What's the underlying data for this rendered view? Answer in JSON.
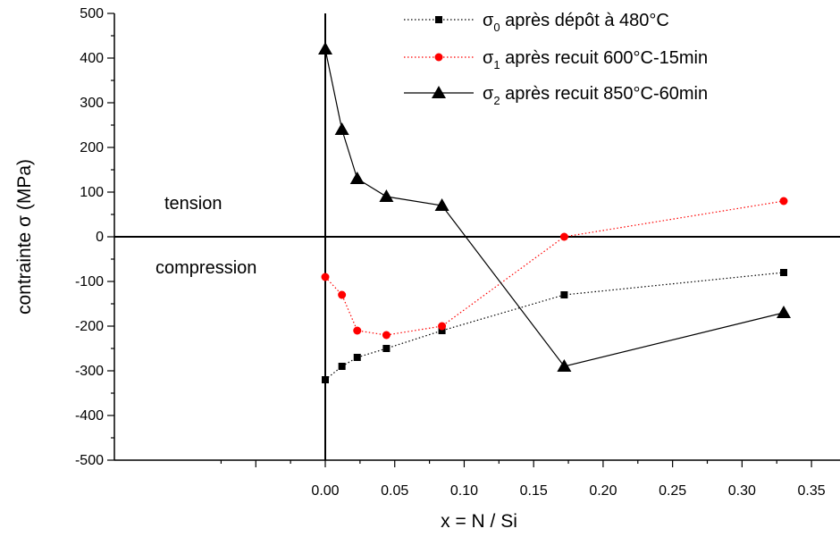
{
  "chart_data": {
    "type": "line",
    "xlabel": "x = N / Si",
    "ylabel": "contrainte σ (MPa)",
    "xlim": [
      -0.075,
      0.37
    ],
    "ylim": [
      -500,
      500
    ],
    "x_ticks": [
      "0.00",
      "0.05",
      "0.10",
      "0.15",
      "0.20",
      "0.25",
      "0.30",
      "0.35"
    ],
    "y_ticks": [
      "500",
      "400",
      "300",
      "200",
      "100",
      "0",
      "-100",
      "-200",
      "-300",
      "-400",
      "-500"
    ],
    "grid": false,
    "legend_position": "top-right",
    "annotations": {
      "tension": "tension",
      "compression": "compression"
    },
    "series": [
      {
        "name": "σ0 après dépôt à 480°C",
        "legend": {
          "symbol": "σ",
          "sub": "0",
          "text": " après dépôt à 480°C"
        },
        "color": "#000000",
        "marker": "square",
        "line": "dotted",
        "x": [
          0.0,
          0.012,
          0.023,
          0.044,
          0.084,
          0.172,
          0.33
        ],
        "y": [
          -320,
          -290,
          -270,
          -250,
          -210,
          -130,
          -80
        ]
      },
      {
        "name": "σ1 après recuit 600°C-15min",
        "legend": {
          "symbol": "σ",
          "sub": "1",
          "text": " après recuit 600°C-15min"
        },
        "color": "#ff0000",
        "marker": "circle",
        "line": "dotted",
        "x": [
          0.0,
          0.012,
          0.023,
          0.044,
          0.084,
          0.172,
          0.33
        ],
        "y": [
          -90,
          -130,
          -210,
          -220,
          -200,
          0,
          80
        ]
      },
      {
        "name": "σ2 après recuit 850°C-60min",
        "legend": {
          "symbol": "σ",
          "sub": "2",
          "text": " après recuit 850°C-60min"
        },
        "color": "#000000",
        "marker": "triangle",
        "line": "solid",
        "x": [
          0.0,
          0.012,
          0.023,
          0.044,
          0.084,
          0.172,
          0.33
        ],
        "y": [
          420,
          240,
          130,
          90,
          70,
          -290,
          -170
        ]
      }
    ]
  }
}
